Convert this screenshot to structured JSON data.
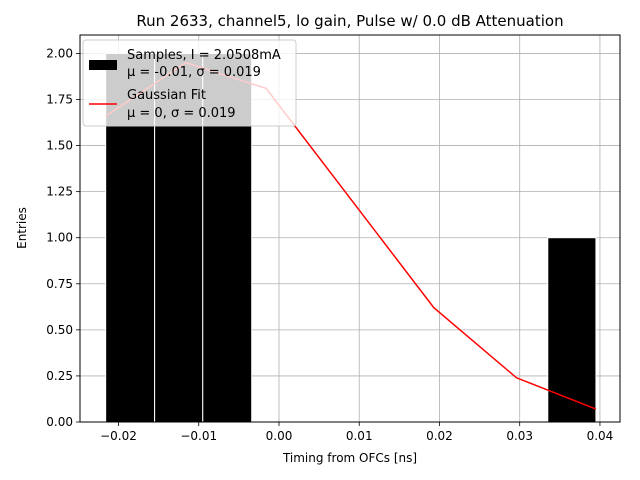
{
  "chart_data": {
    "type": "bar",
    "title": "Run 2633, channel5, lo gain, Pulse w/ 0.0 dB Attenuation",
    "xlabel": "Timing from OFCs [ns]",
    "ylabel": "Entries",
    "xlim": [
      -0.0248,
      0.0425
    ],
    "ylim": [
      0.0,
      2.1
    ],
    "grid": true,
    "legend_position": "upper-left",
    "x_ticks": [
      {
        "value": -0.02,
        "label": "−0.02"
      },
      {
        "value": -0.01,
        "label": "−0.01"
      },
      {
        "value": 0.0,
        "label": "0.00"
      },
      {
        "value": 0.01,
        "label": "0.01"
      },
      {
        "value": 0.02,
        "label": "0.02"
      },
      {
        "value": 0.03,
        "label": "0.03"
      },
      {
        "value": 0.04,
        "label": "0.04"
      }
    ],
    "y_ticks": [
      {
        "value": 0.0,
        "label": "0.00"
      },
      {
        "value": 0.25,
        "label": "0.25"
      },
      {
        "value": 0.5,
        "label": "0.50"
      },
      {
        "value": 0.75,
        "label": "0.75"
      },
      {
        "value": 1.0,
        "label": "1.00"
      },
      {
        "value": 1.25,
        "label": "1.25"
      },
      {
        "value": 1.5,
        "label": "1.50"
      },
      {
        "value": 1.75,
        "label": "1.75"
      },
      {
        "value": 2.0,
        "label": "2.00"
      }
    ],
    "histogram": {
      "name": "Samples, I = 2.0508mA",
      "stats": "μ = -0.01, σ = 0.019",
      "color": "#000000",
      "edge_color": "#ffffff",
      "bins": [
        {
          "x0": -0.0216,
          "x1": -0.0155,
          "count": 2
        },
        {
          "x0": -0.0155,
          "x1": -0.0095,
          "count": 2
        },
        {
          "x0": -0.0095,
          "x1": -0.0034,
          "count": 2
        },
        {
          "x0": 0.0335,
          "x1": 0.0395,
          "count": 1
        }
      ]
    },
    "fit": {
      "name": "Gaussian Fit",
      "stats": "μ = 0, σ = 0.019",
      "color": "#ff0000",
      "x": [
        -0.0216,
        -0.0116,
        -0.0016,
        0.0193,
        0.0296,
        0.0395
      ],
      "y": [
        1.66,
        1.95,
        1.81,
        0.62,
        0.24,
        0.07
      ]
    }
  }
}
